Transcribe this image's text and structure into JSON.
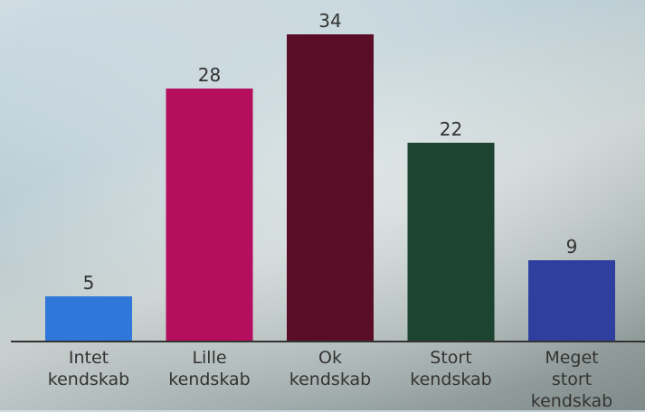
{
  "chart_data": {
    "type": "bar",
    "categories": [
      "Intet kendskab",
      "Lille kendskab",
      "Ok kendskab",
      "Stort kendskab",
      "Meget stort kendskab"
    ],
    "values": [
      5,
      28,
      34,
      22,
      9
    ],
    "colors": [
      "#2f77d8",
      "#b50e5e",
      "#5a0d26",
      "#1c4430",
      "#2f3fa0"
    ]
  }
}
